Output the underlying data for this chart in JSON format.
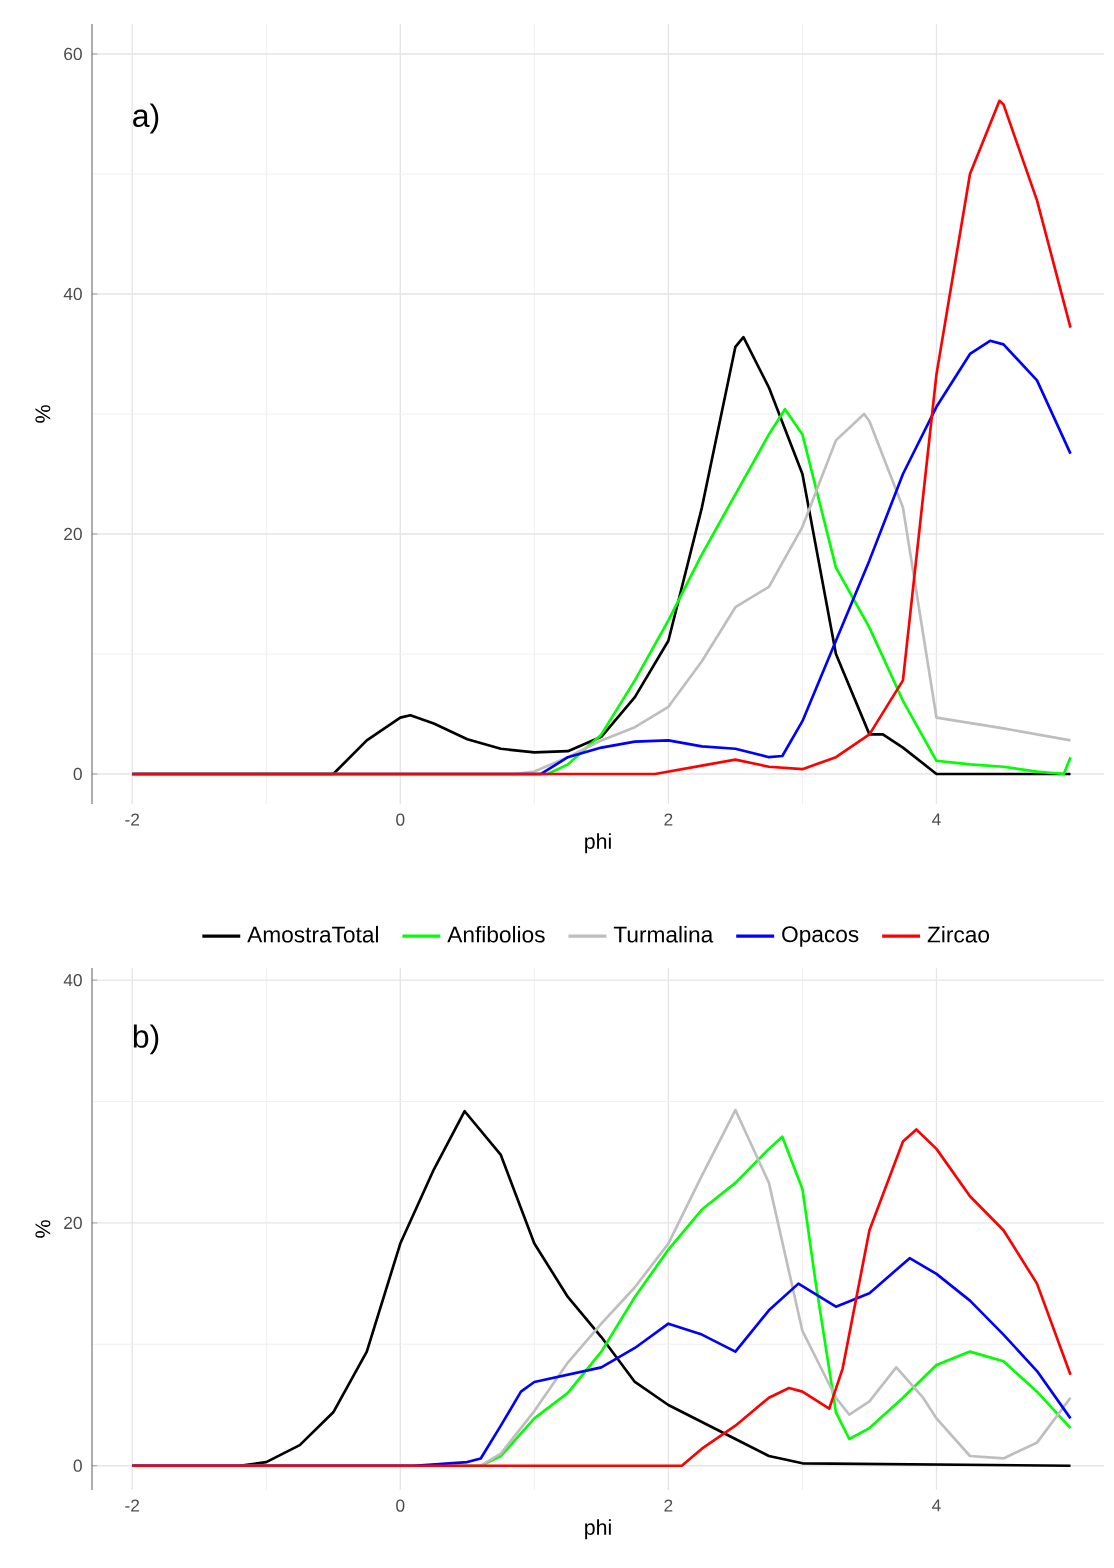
{
  "chart_data": [
    {
      "type": "line",
      "xlabel": "phi",
      "ylabel": "%",
      "annotations": [
        "a)"
      ],
      "xlim": [
        -2.3,
        5.25
      ],
      "ylim": [
        -2.5,
        62.5
      ],
      "xticks": [
        -2,
        0,
        2,
        4
      ],
      "yticks": [
        0,
        20,
        40,
        60
      ],
      "grid": true,
      "legend": false,
      "series": [
        {
          "color": "#000000",
          "x": [
            -2,
            -0.5,
            -0.25,
            0,
            0.075,
            0.25,
            0.5,
            0.75,
            1,
            1.25,
            1.5,
            1.75,
            2,
            2.25,
            2.5,
            2.56,
            2.75,
            3,
            3.25,
            3.5,
            3.6,
            3.75,
            4,
            5
          ],
          "values": [
            0,
            0,
            2.8,
            4.7,
            4.9,
            4.2,
            2.9,
            2.1,
            1.8,
            1.9,
            3.1,
            6.4,
            11.1,
            22.2,
            35.6,
            36.4,
            32.2,
            25,
            10,
            3.3,
            3.3,
            2.2,
            0,
            0
          ]
        },
        {
          "color": "#00ff00",
          "x": [
            -2,
            1.1,
            1.25,
            1.5,
            1.75,
            2,
            2.25,
            2.5,
            2.75,
            2.87,
            3,
            3.25,
            3.5,
            3.75,
            4,
            4.25,
            4.5,
            4.75,
            4.95,
            5
          ],
          "values": [
            0,
            0,
            0.8,
            3.3,
            7.8,
            12.8,
            18.3,
            23.3,
            28.3,
            30.4,
            28.3,
            17.2,
            12.2,
            6.1,
            1.1,
            0.8,
            0.6,
            0.2,
            0,
            1.4
          ]
        },
        {
          "color": "#bebebe",
          "x": [
            -2,
            0.85,
            1,
            1.25,
            1.5,
            1.75,
            2,
            2.25,
            2.5,
            2.75,
            3,
            3.25,
            3.46,
            3.5,
            3.75,
            4,
            4.5,
            5
          ],
          "values": [
            0,
            0,
            0.2,
            1.4,
            2.8,
            3.9,
            5.6,
            9.4,
            13.9,
            15.6,
            20.6,
            27.8,
            30,
            29.4,
            22.2,
            4.7,
            3.8,
            2.8
          ]
        },
        {
          "color": "#0000ff",
          "x": [
            -2,
            1.05,
            1.25,
            1.5,
            1.75,
            2,
            2.25,
            2.5,
            2.75,
            2.85,
            3,
            3.25,
            3.5,
            3.75,
            4,
            4.25,
            4.4,
            4.5,
            4.75,
            5
          ],
          "values": [
            0,
            0,
            1.4,
            2.2,
            2.7,
            2.8,
            2.3,
            2.1,
            1.4,
            1.5,
            4.4,
            11.1,
            17.8,
            25,
            30.6,
            35,
            36.1,
            35.8,
            32.8,
            26.7
          ]
        },
        {
          "color": "#ff0000",
          "x": [
            -2,
            1.9,
            2.25,
            2.5,
            2.75,
            3,
            3.25,
            3.5,
            3.75,
            4,
            4.25,
            4.47,
            4.5,
            4.75,
            5
          ],
          "values": [
            0,
            0,
            0.7,
            1.2,
            0.6,
            0.4,
            1.4,
            3.3,
            7.8,
            33.3,
            50,
            56.1,
            55.8,
            47.8,
            37.2
          ]
        }
      ]
    },
    {
      "type": "line",
      "xlabel": "phi",
      "ylabel": "%",
      "annotations": [
        "b)"
      ],
      "xlim": [
        -2.3,
        5.25
      ],
      "ylim": [
        -2,
        41
      ],
      "xticks": [
        -2,
        0,
        2,
        4
      ],
      "yticks": [
        0,
        20,
        40
      ],
      "grid": true,
      "legend": "top",
      "series": [
        {
          "name": "AmostraTotal",
          "color": "#000000",
          "x": [
            -2,
            -1.2,
            -1,
            -0.75,
            -0.5,
            -0.25,
            0,
            0.25,
            0.48,
            0.75,
            1,
            1.25,
            1.5,
            1.75,
            2,
            2.25,
            2.5,
            2.75,
            3,
            5
          ],
          "values": [
            0,
            0,
            0.3,
            1.7,
            4.4,
            9.4,
            18.3,
            24.4,
            29.2,
            25.6,
            18.3,
            13.9,
            10.6,
            6.9,
            5,
            3.6,
            2.2,
            0.8,
            0.2,
            0
          ]
        },
        {
          "name": "Anfibolios",
          "color": "#00ff00",
          "x": [
            -2,
            0.6,
            0.75,
            1,
            1.25,
            1.5,
            1.75,
            2,
            2.25,
            2.5,
            2.75,
            2.85,
            3,
            3.1,
            3.25,
            3.35,
            3.5,
            3.75,
            4,
            4.25,
            4.5,
            4.75,
            5
          ],
          "values": [
            0,
            0,
            0.8,
            3.9,
            6,
            9.4,
            13.9,
            17.8,
            21.1,
            23.3,
            26.1,
            27.1,
            22.8,
            15,
            4.4,
            2.2,
            3.1,
            5.6,
            8.3,
            9.4,
            8.6,
            6.1,
            3.1
          ]
        },
        {
          "name": "Turmalina",
          "color": "#bebebe",
          "x": [
            -2,
            0.6,
            0.75,
            1,
            1.25,
            1.5,
            1.75,
            2,
            2.25,
            2.5,
            2.75,
            3,
            3.25,
            3.35,
            3.5,
            3.7,
            3.9,
            4,
            4.25,
            4.5,
            4.75,
            5
          ],
          "values": [
            0,
            0,
            1,
            4.5,
            8.5,
            11.7,
            14.7,
            18.3,
            23.9,
            29.3,
            23.3,
            11.1,
            5.6,
            4.2,
            5.3,
            8.1,
            5.6,
            3.9,
            0.8,
            0.6,
            1.9,
            5.6
          ]
        },
        {
          "name": "Opacos",
          "color": "#0000ff",
          "x": [
            -2,
            0.1,
            0.5,
            0.6,
            0.75,
            0.9,
            1,
            1.25,
            1.5,
            1.75,
            2,
            2.25,
            2.5,
            2.75,
            2.97,
            3.25,
            3.5,
            3.8,
            4,
            4.25,
            4.5,
            4.75,
            5
          ],
          "values": [
            0,
            0,
            0.3,
            0.6,
            3.3,
            6.1,
            6.9,
            7.5,
            8.1,
            9.7,
            11.7,
            10.8,
            9.4,
            12.8,
            15,
            13.1,
            14.2,
            17.1,
            15.8,
            13.6,
            10.8,
            7.8,
            3.9
          ]
        },
        {
          "name": "Zircao",
          "color": "#ff0000",
          "x": [
            -2,
            2.1,
            2.25,
            2.5,
            2.75,
            2.9,
            3,
            3.2,
            3.3,
            3.5,
            3.75,
            3.85,
            4,
            4.25,
            4.5,
            4.75,
            5
          ],
          "values": [
            0,
            0,
            1.4,
            3.3,
            5.6,
            6.4,
            6.1,
            4.7,
            8,
            19.4,
            26.7,
            27.7,
            26.1,
            22.2,
            19.4,
            15,
            7.5
          ]
        }
      ]
    }
  ]
}
